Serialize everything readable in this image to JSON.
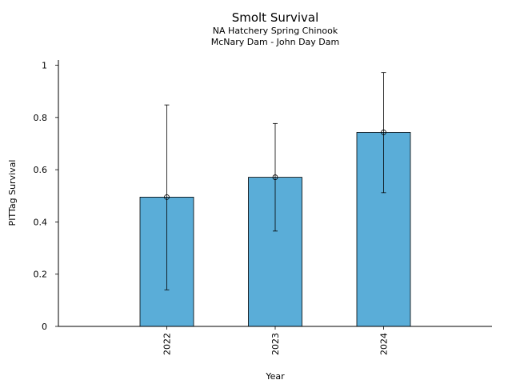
{
  "chart_data": {
    "type": "bar",
    "title": "Smolt Survival",
    "subtitle_lines": [
      "NA Hatchery Spring Chinook",
      "McNary Dam - John Day Dam"
    ],
    "xlabel": "Year",
    "ylabel": "PITTag Survival",
    "categories": [
      "2022",
      "2023",
      "2024"
    ],
    "values": [
      0.495,
      0.571,
      0.743
    ],
    "error_low": [
      0.14,
      0.365,
      0.512
    ],
    "error_high": [
      0.848,
      0.777,
      0.972
    ],
    "ylim": [
      0,
      1.02
    ],
    "yticks": [
      "0",
      "0.2",
      "0.4",
      "0.6",
      "0.8",
      "1"
    ],
    "grid": false,
    "bar_color": "#5aadd8",
    "edge_color": "#000000"
  }
}
